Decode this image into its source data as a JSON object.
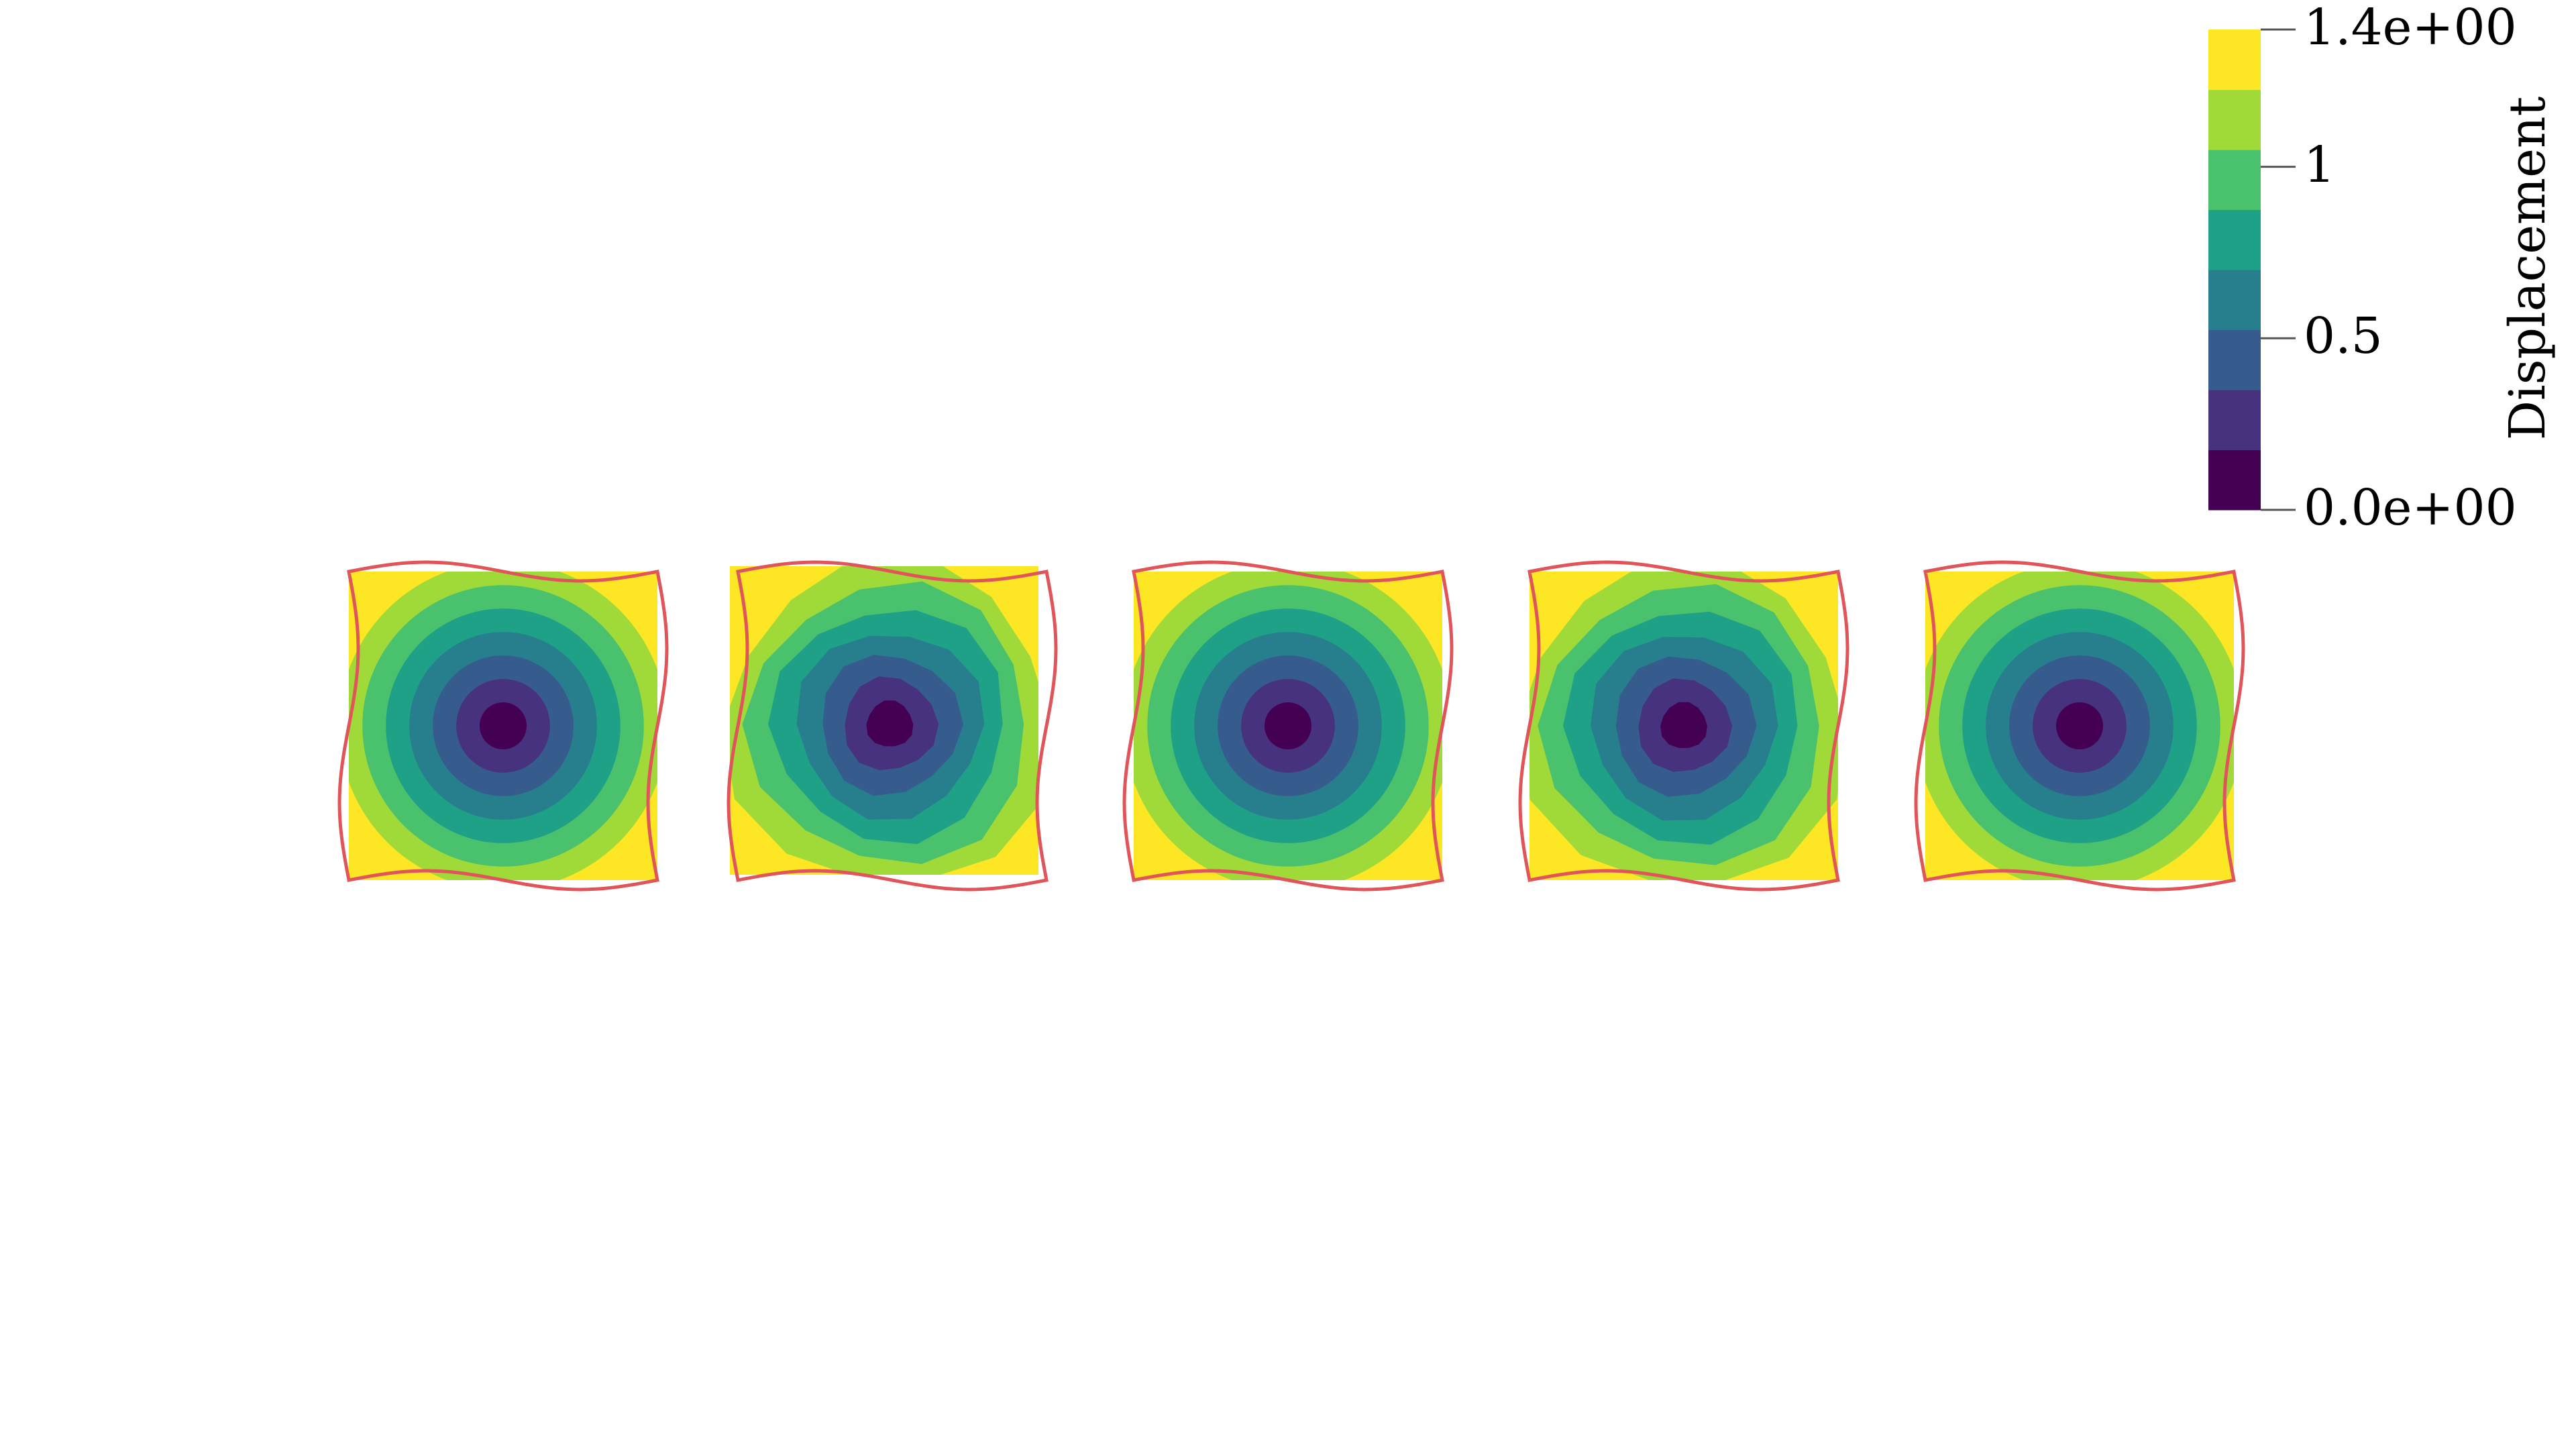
{
  "chart_data": {
    "type": "heatmap",
    "title": "",
    "colorbar": {
      "title": "Displacement",
      "range": [
        0.0,
        1.4
      ],
      "tick_labels": [
        {
          "value": 1.4,
          "label": "1.4e+00"
        },
        {
          "value": 1.0,
          "label": "1"
        },
        {
          "value": 0.5,
          "label": "0.5"
        },
        {
          "value": 0.0,
          "label": "0.0e+00"
        }
      ],
      "bands": [
        "#440154",
        "#46327e",
        "#365c8d",
        "#277f8e",
        "#1fa187",
        "#4ac16d",
        "#a0da39",
        "#fde725"
      ],
      "band_edges": [
        0.0,
        0.175,
        0.35,
        0.525,
        0.7,
        0.875,
        1.05,
        1.225,
        1.4
      ]
    },
    "panels": [
      {
        "name": "panel-1",
        "skew": 0.0,
        "undeformed_offset": false
      },
      {
        "name": "panel-2",
        "skew": 0.05,
        "undeformed_offset": true
      },
      {
        "name": "panel-3",
        "skew": 0.0,
        "undeformed_offset": false
      },
      {
        "name": "panel-4",
        "skew": 0.04,
        "undeformed_offset": false
      },
      {
        "name": "panel-5",
        "skew": 0.0,
        "undeformed_offset": false
      }
    ],
    "outline_color": "#e0555a",
    "legend_placement": "top-right",
    "grid": false
  }
}
